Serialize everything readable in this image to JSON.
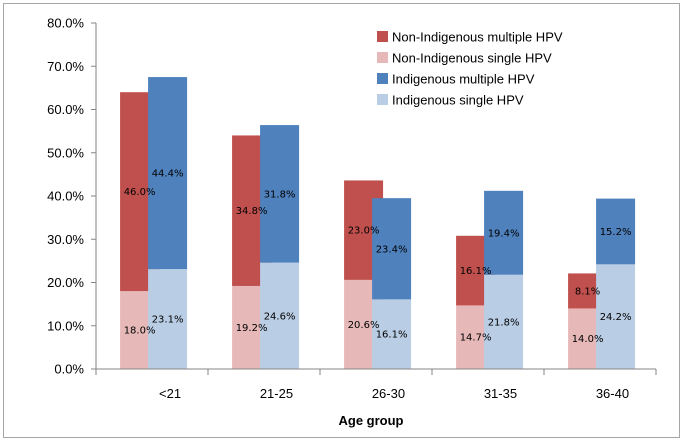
{
  "chart_data": {
    "type": "bar",
    "stacked": true,
    "title": "",
    "xlabel": "Age group",
    "ylabel": "",
    "ylim": [
      0,
      80
    ],
    "y_ticks": [
      "0.0%",
      "10.0%",
      "20.0%",
      "30.0%",
      "40.0%",
      "50.0%",
      "60.0%",
      "70.0%",
      "80.0%"
    ],
    "categories": [
      "<21",
      "21-25",
      "26-30",
      "31-35",
      "36-40"
    ],
    "legend_position": "top-right",
    "groups": [
      {
        "name": "Non-Indigenous",
        "series": [
          {
            "name": "Non-Indigenous single HPV",
            "values": [
              18.0,
              19.2,
              20.6,
              14.7,
              14.0
            ],
            "labels": [
              "18.0%",
              "19.2%",
              "20.6%",
              "14.7%",
              "14.0%"
            ]
          },
          {
            "name": "Non-Indigenous multiple HPV",
            "values": [
              46.0,
              34.8,
              23.0,
              16.1,
              8.1
            ],
            "labels": [
              "46.0%",
              "34.8%",
              "23.0%",
              "16.1%",
              "8.1%"
            ]
          }
        ]
      },
      {
        "name": "Indigenous",
        "series": [
          {
            "name": "Indigenous single HPV",
            "values": [
              23.1,
              24.6,
              16.1,
              21.8,
              24.2
            ],
            "labels": [
              "23.1%",
              "24.6%",
              "16.1%",
              "21.8%",
              "24.2%"
            ]
          },
          {
            "name": "Indigenous multiple HPV",
            "values": [
              44.4,
              31.8,
              23.4,
              19.4,
              15.2
            ],
            "labels": [
              "44.4%",
              "31.8%",
              "23.4%",
              "19.4%",
              "15.2%"
            ]
          }
        ]
      }
    ],
    "legend": [
      "Non-Indigenous multiple  HPV",
      "Non-Indigenous single  HPV",
      "Indigenous multiple  HPV",
      "Indigenous single HPV"
    ],
    "colors": {
      "Non-Indigenous multiple HPV": "#c0504d",
      "Non-Indigenous single HPV": "#e6b9b8",
      "Indigenous multiple HPV": "#4f81bd",
      "Indigenous single HPV": "#b9cde5"
    }
  }
}
